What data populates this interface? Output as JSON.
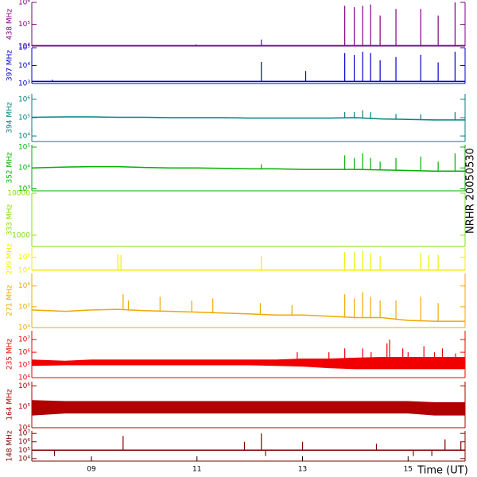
{
  "chart_data": {
    "type": "line",
    "xlabel": "Time (UT)",
    "side_label": "NRHR 20050530",
    "xlim": [
      7.87,
      16.08
    ],
    "xticks": [
      {
        "value": 9,
        "label": "09"
      },
      11,
      13,
      15
    ],
    "log_y": true,
    "panels": [
      {
        "label": "438 MHz",
        "color": "#800080",
        "ylim": [
          10000,
          1000000
        ],
        "yticks": [
          {
            "value": 10000,
            "label": "10⁴"
          },
          {
            "value": 100000,
            "label": "10⁵"
          },
          {
            "value": 1000000,
            "label": "10⁶"
          }
        ],
        "x": [
          7.87,
          8.5,
          9,
          9.5,
          10,
          10.5,
          11,
          11.5,
          12,
          12.5,
          13,
          13.5,
          14,
          14.5,
          15,
          15.5,
          16.08
        ],
        "values": [
          10500,
          10500,
          10500,
          10500,
          10500,
          10500,
          10500,
          10500,
          10500,
          10500,
          10500,
          10500,
          10500,
          10500,
          10500,
          10500,
          10500
        ],
        "spikes": {
          "x": [
            10.98,
            12.22,
            13.8,
            13.98,
            14.14,
            14.29,
            14.47,
            14.77,
            15.24,
            15.57,
            15.89
          ],
          "values": [
            12000,
            20000,
            700000,
            600000,
            700000,
            800000,
            250000,
            500000,
            500000,
            250000,
            1000000
          ]
        }
      },
      {
        "label": "397 MHz",
        "color": "#0000d0",
        "ylim": [
          1000,
          100000
        ],
        "yticks": [
          {
            "value": 1000,
            "label": "10³"
          },
          {
            "value": 10000,
            "label": "10⁴"
          },
          {
            "value": 100000,
            "label": "10⁵"
          }
        ],
        "x": [
          7.87,
          8.5,
          9,
          9.5,
          10,
          10.5,
          11,
          11.5,
          12,
          12.5,
          13,
          13.5,
          14,
          14.5,
          15,
          15.5,
          16.08
        ],
        "values": [
          1300,
          1300,
          1300,
          1300,
          1300,
          1300,
          1300,
          1300,
          1300,
          1300,
          1300,
          1300,
          1300,
          1300,
          1300,
          1300,
          1300
        ],
        "spikes": {
          "x": [
            8.26,
            12.22,
            13.06,
            13.8,
            13.98,
            14.14,
            14.29,
            14.47,
            14.77,
            15.24,
            15.57,
            15.89
          ],
          "values": [
            1600,
            16000,
            5000,
            50000,
            40000,
            60000,
            50000,
            20000,
            30000,
            40000,
            15000,
            60000
          ]
        }
      },
      {
        "label": "394 MHz",
        "color": "#008080",
        "ylim": [
          5000,
          2000000
        ],
        "yticks": [
          {
            "value": 10000,
            "label": "10⁴"
          },
          {
            "value": 100000,
            "label": "10⁵"
          },
          {
            "value": 1000000,
            "label": "10⁶"
          }
        ],
        "x": [
          7.87,
          8.5,
          9,
          9.5,
          10,
          10.5,
          11,
          11.5,
          12,
          12.5,
          13,
          13.5,
          14,
          14.5,
          15,
          15.5,
          16.08
        ],
        "values": [
          105000,
          110000,
          110000,
          105000,
          105000,
          100000,
          100000,
          100000,
          95000,
          95000,
          95000,
          95000,
          100000,
          85000,
          80000,
          75000,
          75000
        ],
        "spikes": {
          "x": [
            13.8,
            13.98,
            14.14,
            14.29,
            14.77,
            15.24,
            15.89
          ],
          "values": [
            200000,
            200000,
            250000,
            200000,
            160000,
            150000,
            200000
          ]
        }
      },
      {
        "label": "352 MHz",
        "color": "#00b000",
        "ylim": [
          800,
          130000
        ],
        "yticks": [
          {
            "value": 1000,
            "label": "10³"
          },
          {
            "value": 10000,
            "label": "10⁴"
          },
          {
            "value": 100000,
            "label": "10⁵"
          }
        ],
        "x": [
          7.87,
          8.5,
          9,
          9.5,
          10,
          10.5,
          11,
          11.5,
          12,
          12.5,
          13,
          13.5,
          14,
          14.5,
          15,
          15.5,
          16.08
        ],
        "values": [
          10000,
          11000,
          11500,
          11500,
          10500,
          10000,
          10000,
          9500,
          9000,
          9000,
          8500,
          8500,
          8500,
          8000,
          7500,
          7000,
          7000
        ],
        "spikes": {
          "x": [
            12.22,
            13.8,
            13.98,
            14.14,
            14.29,
            14.47,
            14.77,
            15.24,
            15.57,
            15.89
          ],
          "values": [
            15000,
            40000,
            30000,
            50000,
            30000,
            20000,
            30000,
            35000,
            20000,
            50000
          ]
        }
      },
      {
        "label": "333 MHz",
        "color": "#80e000",
        "ylim": [
          540,
          10000
        ],
        "yticks": [
          1000,
          10000
        ]
      },
      {
        "label": "299 MHz",
        "color": "#f0f000",
        "ylim": [
          10000,
          500000
        ],
        "yticks": [
          {
            "value": 10000,
            "label": "10⁴"
          },
          {
            "value": 100000,
            "label": "10⁵"
          }
        ],
        "x": [
          7.87,
          8.5,
          9,
          9.5,
          10,
          10.5,
          11,
          11.5,
          12,
          12.5,
          13,
          13.5,
          14,
          14.5,
          15,
          15.5,
          16.08
        ],
        "values": [
          10500,
          10500,
          10500,
          10500,
          10500,
          10500,
          10500,
          10500,
          10500,
          10500,
          10500,
          10500,
          10500,
          10500,
          10500,
          10500,
          10500
        ],
        "spikes": {
          "x": [
            9.5,
            9.56,
            12.22,
            13.8,
            13.98,
            14.14,
            14.29,
            14.47,
            15.24,
            15.39,
            15.57
          ],
          "values": [
            180000,
            150000,
            120000,
            250000,
            250000,
            300000,
            200000,
            120000,
            200000,
            150000,
            150000
          ]
        }
      },
      {
        "label": "271 MHz",
        "color": "#f0a800",
        "ylim": [
          10000,
          4000000
        ],
        "yticks": [
          {
            "value": 10000,
            "label": "10⁴"
          },
          {
            "value": 100000,
            "label": "10⁵"
          },
          {
            "value": 1000000,
            "label": "10⁶"
          }
        ],
        "x": [
          7.87,
          8.5,
          9,
          9.5,
          10,
          10.5,
          11,
          11.5,
          12,
          12.5,
          13,
          13.5,
          14,
          14.5,
          15,
          15.5,
          16.08
        ],
        "values": [
          70000,
          60000,
          70000,
          75000,
          65000,
          60000,
          55000,
          50000,
          45000,
          40000,
          40000,
          35000,
          30000,
          30000,
          22000,
          20000,
          20000
        ],
        "spikes": {
          "x": [
            9.6,
            9.7,
            10.3,
            10.9,
            11.3,
            12.2,
            12.8,
            13.8,
            13.98,
            14.14,
            14.29,
            14.47,
            14.77,
            15.24,
            15.57
          ],
          "values": [
            400000,
            200000,
            300000,
            200000,
            250000,
            150000,
            120000,
            400000,
            250000,
            500000,
            300000,
            200000,
            200000,
            300000,
            150000
          ]
        }
      },
      {
        "label": "235 MHz",
        "color": "#f00000",
        "ylim": [
          10000,
          50000000
        ],
        "yticks": [
          {
            "value": 10000,
            "label": "10⁴"
          },
          {
            "value": 100000,
            "label": "10⁵"
          },
          {
            "value": 1000000,
            "label": "10⁶"
          },
          {
            "value": 10000000,
            "label": "10⁷"
          }
        ],
        "x": [
          7.87,
          8.5,
          9,
          9.5,
          10,
          10.5,
          11,
          11.5,
          12,
          12.5,
          13,
          13.5,
          14,
          14.5,
          15,
          15.5,
          16.08
        ],
        "values": [
          250000,
          200000,
          250000,
          250000,
          250000,
          250000,
          250000,
          250000,
          250000,
          250000,
          300000,
          300000,
          350000,
          400000,
          400000,
          400000,
          400000
        ],
        "values_low": [
          90000,
          100000,
          100000,
          100000,
          100000,
          100000,
          100000,
          100000,
          100000,
          90000,
          80000,
          60000,
          50000,
          50000,
          50000,
          50000,
          50000
        ],
        "spikes": {
          "x": [
            12.9,
            13.5,
            13.8,
            14.14,
            14.3,
            14.6,
            14.65,
            14.9,
            15.0,
            15.3,
            15.5,
            15.65,
            15.9
          ],
          "values": [
            1000000,
            1000000,
            2000000,
            2000000,
            1000000,
            5000000,
            10000000,
            2000000,
            1000000,
            3000000,
            1000000,
            2000000,
            800000
          ]
        }
      },
      {
        "label": "164 MHz",
        "color": "#b00000",
        "ylim": [
          10000,
          1600000
        ],
        "yticks": [
          {
            "value": 10000,
            "label": "10⁴"
          },
          {
            "value": 100000,
            "label": "10⁵"
          },
          {
            "value": 1000000,
            "label": "10⁶"
          }
        ],
        "x": [
          7.87,
          8.5,
          9,
          9.5,
          10,
          10.5,
          11,
          11.5,
          12,
          12.5,
          13,
          13.5,
          14,
          14.5,
          15,
          15.5,
          16.08
        ],
        "values": [
          200000,
          180000,
          180000,
          180000,
          180000,
          180000,
          180000,
          180000,
          180000,
          180000,
          180000,
          180000,
          180000,
          180000,
          180000,
          160000,
          160000
        ],
        "values_low": [
          40000,
          50000,
          50000,
          50000,
          50000,
          50000,
          50000,
          50000,
          50000,
          50000,
          50000,
          50000,
          50000,
          50000,
          50000,
          40000,
          40000
        ]
      },
      {
        "label": "148 MHz",
        "color": "#800000",
        "ylim": [
          5000,
          20000000
        ],
        "yticks": [
          {
            "value": 10000,
            "label": "10⁴"
          },
          {
            "value": 100000,
            "label": "10⁵"
          },
          {
            "value": 1000000,
            "label": "10⁶"
          },
          {
            "value": 10000000,
            "label": "10⁷"
          }
        ],
        "x": [
          7.87,
          8.5,
          9,
          9.5,
          10,
          10.5,
          11,
          11.5,
          12,
          12.5,
          13,
          13.5,
          14,
          14.5,
          15,
          15.5,
          16.08
        ],
        "values": [
          100000,
          100000,
          100000,
          100000,
          100000,
          100000,
          100000,
          100000,
          100000,
          100000,
          100000,
          100000,
          100000,
          100000,
          100000,
          100000,
          100000
        ],
        "spikes": {
          "x": [
            8.3,
            9.6,
            11.9,
            12.22,
            12.3,
            13.0,
            14.4,
            15.1,
            15.45,
            15.7,
            16.0
          ],
          "values": [
            20000,
            5000000,
            1000000,
            10000000,
            20000,
            1000000,
            600000,
            20000,
            20000,
            2000000,
            1000000
          ]
        }
      }
    ]
  }
}
